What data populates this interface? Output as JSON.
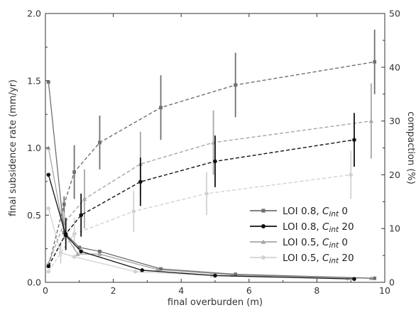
{
  "chart_data": {
    "type": "line",
    "xlabel": "final overburden (m)",
    "ylabel": "final subsidence rate (mm/yr)",
    "y2label": "compaction (%)",
    "xlim": [
      0,
      10
    ],
    "ylim": [
      0,
      2.0
    ],
    "y2lim": [
      0,
      50
    ],
    "x_ticks": [
      0,
      2,
      4,
      6,
      8,
      10
    ],
    "y_ticks": [
      0.0,
      0.5,
      1.0,
      1.5,
      2.0
    ],
    "y2_ticks": [
      0,
      10,
      20,
      30,
      40,
      50
    ],
    "x_tick_labels": [
      "0",
      "2",
      "4",
      "6",
      "8",
      "10"
    ],
    "y_tick_labels": [
      "0.0",
      "0.5",
      "1.0",
      "1.5",
      "2.0"
    ],
    "y2_tick_labels": [
      "0",
      "10",
      "20",
      "30",
      "40",
      "50"
    ],
    "grid": false,
    "legend_position": "lower-right",
    "series": [
      {
        "name": "LOI 0.8, Cint 0",
        "legend_main": "LOI 0.8, ",
        "legend_c": "C",
        "legend_sub": "int",
        "legend_val": " 0",
        "color": "#707070",
        "marker": "square",
        "subsidence_rate": {
          "x": [
            0.09,
            0.55,
            1.0,
            1.6,
            3.4,
            5.6,
            9.7
          ],
          "y": [
            1.49,
            0.37,
            0.26,
            0.23,
            0.1,
            0.06,
            0.03
          ]
        },
        "compaction": {
          "x": [
            0.09,
            0.55,
            0.85,
            1.6,
            3.4,
            5.6,
            9.7
          ],
          "y": [
            3.0,
            14.5,
            20.5,
            26.0,
            32.5,
            36.7,
            41.0
          ],
          "err": [
            null,
            1.5,
            5.0,
            5.0,
            6.0,
            6.0,
            6.0
          ]
        }
      },
      {
        "name": "LOI 0.8, Cint 20",
        "legend_main": "LOI 0.8, ",
        "legend_c": "C",
        "legend_sub": "int",
        "legend_val": " 20",
        "color": "#111111",
        "marker": "circle",
        "subsidence_rate": {
          "x": [
            0.09,
            0.6,
            1.05,
            2.85,
            5.0,
            9.1
          ],
          "y": [
            0.8,
            0.35,
            0.23,
            0.09,
            0.05,
            0.025
          ]
        },
        "compaction": {
          "x": [
            0.09,
            0.6,
            1.05,
            2.8,
            5.0,
            9.1
          ],
          "y": [
            3.0,
            9.0,
            12.5,
            18.7,
            22.5,
            26.5
          ],
          "err": [
            null,
            3.0,
            4.0,
            4.5,
            4.8,
            5.0
          ]
        }
      },
      {
        "name": "LOI 0.5, Cint 0",
        "legend_main": "LOI 0.5, ",
        "legend_c": "C",
        "legend_sub": "int",
        "legend_val": " 0",
        "color": "#a6a6a6",
        "marker": "triangle",
        "subsidence_rate": {
          "x": [
            0.09,
            0.55,
            0.95,
            1.6,
            3.3,
            5.5,
            9.6
          ],
          "y": [
            1.0,
            0.37,
            0.21,
            0.21,
            0.095,
            0.055,
            0.03
          ]
        },
        "compaction": {
          "x": [
            0.09,
            0.55,
            1.15,
            2.8,
            4.95,
            9.6
          ],
          "y": [
            3.5,
            11.0,
            15.5,
            22.0,
            26.0,
            30.0
          ],
          "err": [
            null,
            3.0,
            5.5,
            6.0,
            6.0,
            7.0
          ]
        }
      },
      {
        "name": "LOI 0.5, Cint 20",
        "legend_main": "LOI 0.5, ",
        "legend_c": "C",
        "legend_sub": "int",
        "legend_val": " 20",
        "color": "#d2d2d2",
        "marker": "circle",
        "subsidence_rate": {
          "x": [
            0.09,
            0.45,
            0.85,
            2.65,
            4.9,
            8.9
          ],
          "y": [
            0.55,
            0.22,
            0.19,
            0.08,
            0.05,
            0.025
          ]
        },
        "compaction": {
          "x": [
            0.09,
            0.45,
            0.85,
            2.6,
            4.75,
            9.0
          ],
          "y": [
            2.0,
            5.5,
            9.0,
            13.2,
            16.5,
            20.0
          ],
          "err": [
            null,
            2.0,
            3.0,
            3.8,
            4.0,
            4.5
          ]
        }
      }
    ]
  }
}
